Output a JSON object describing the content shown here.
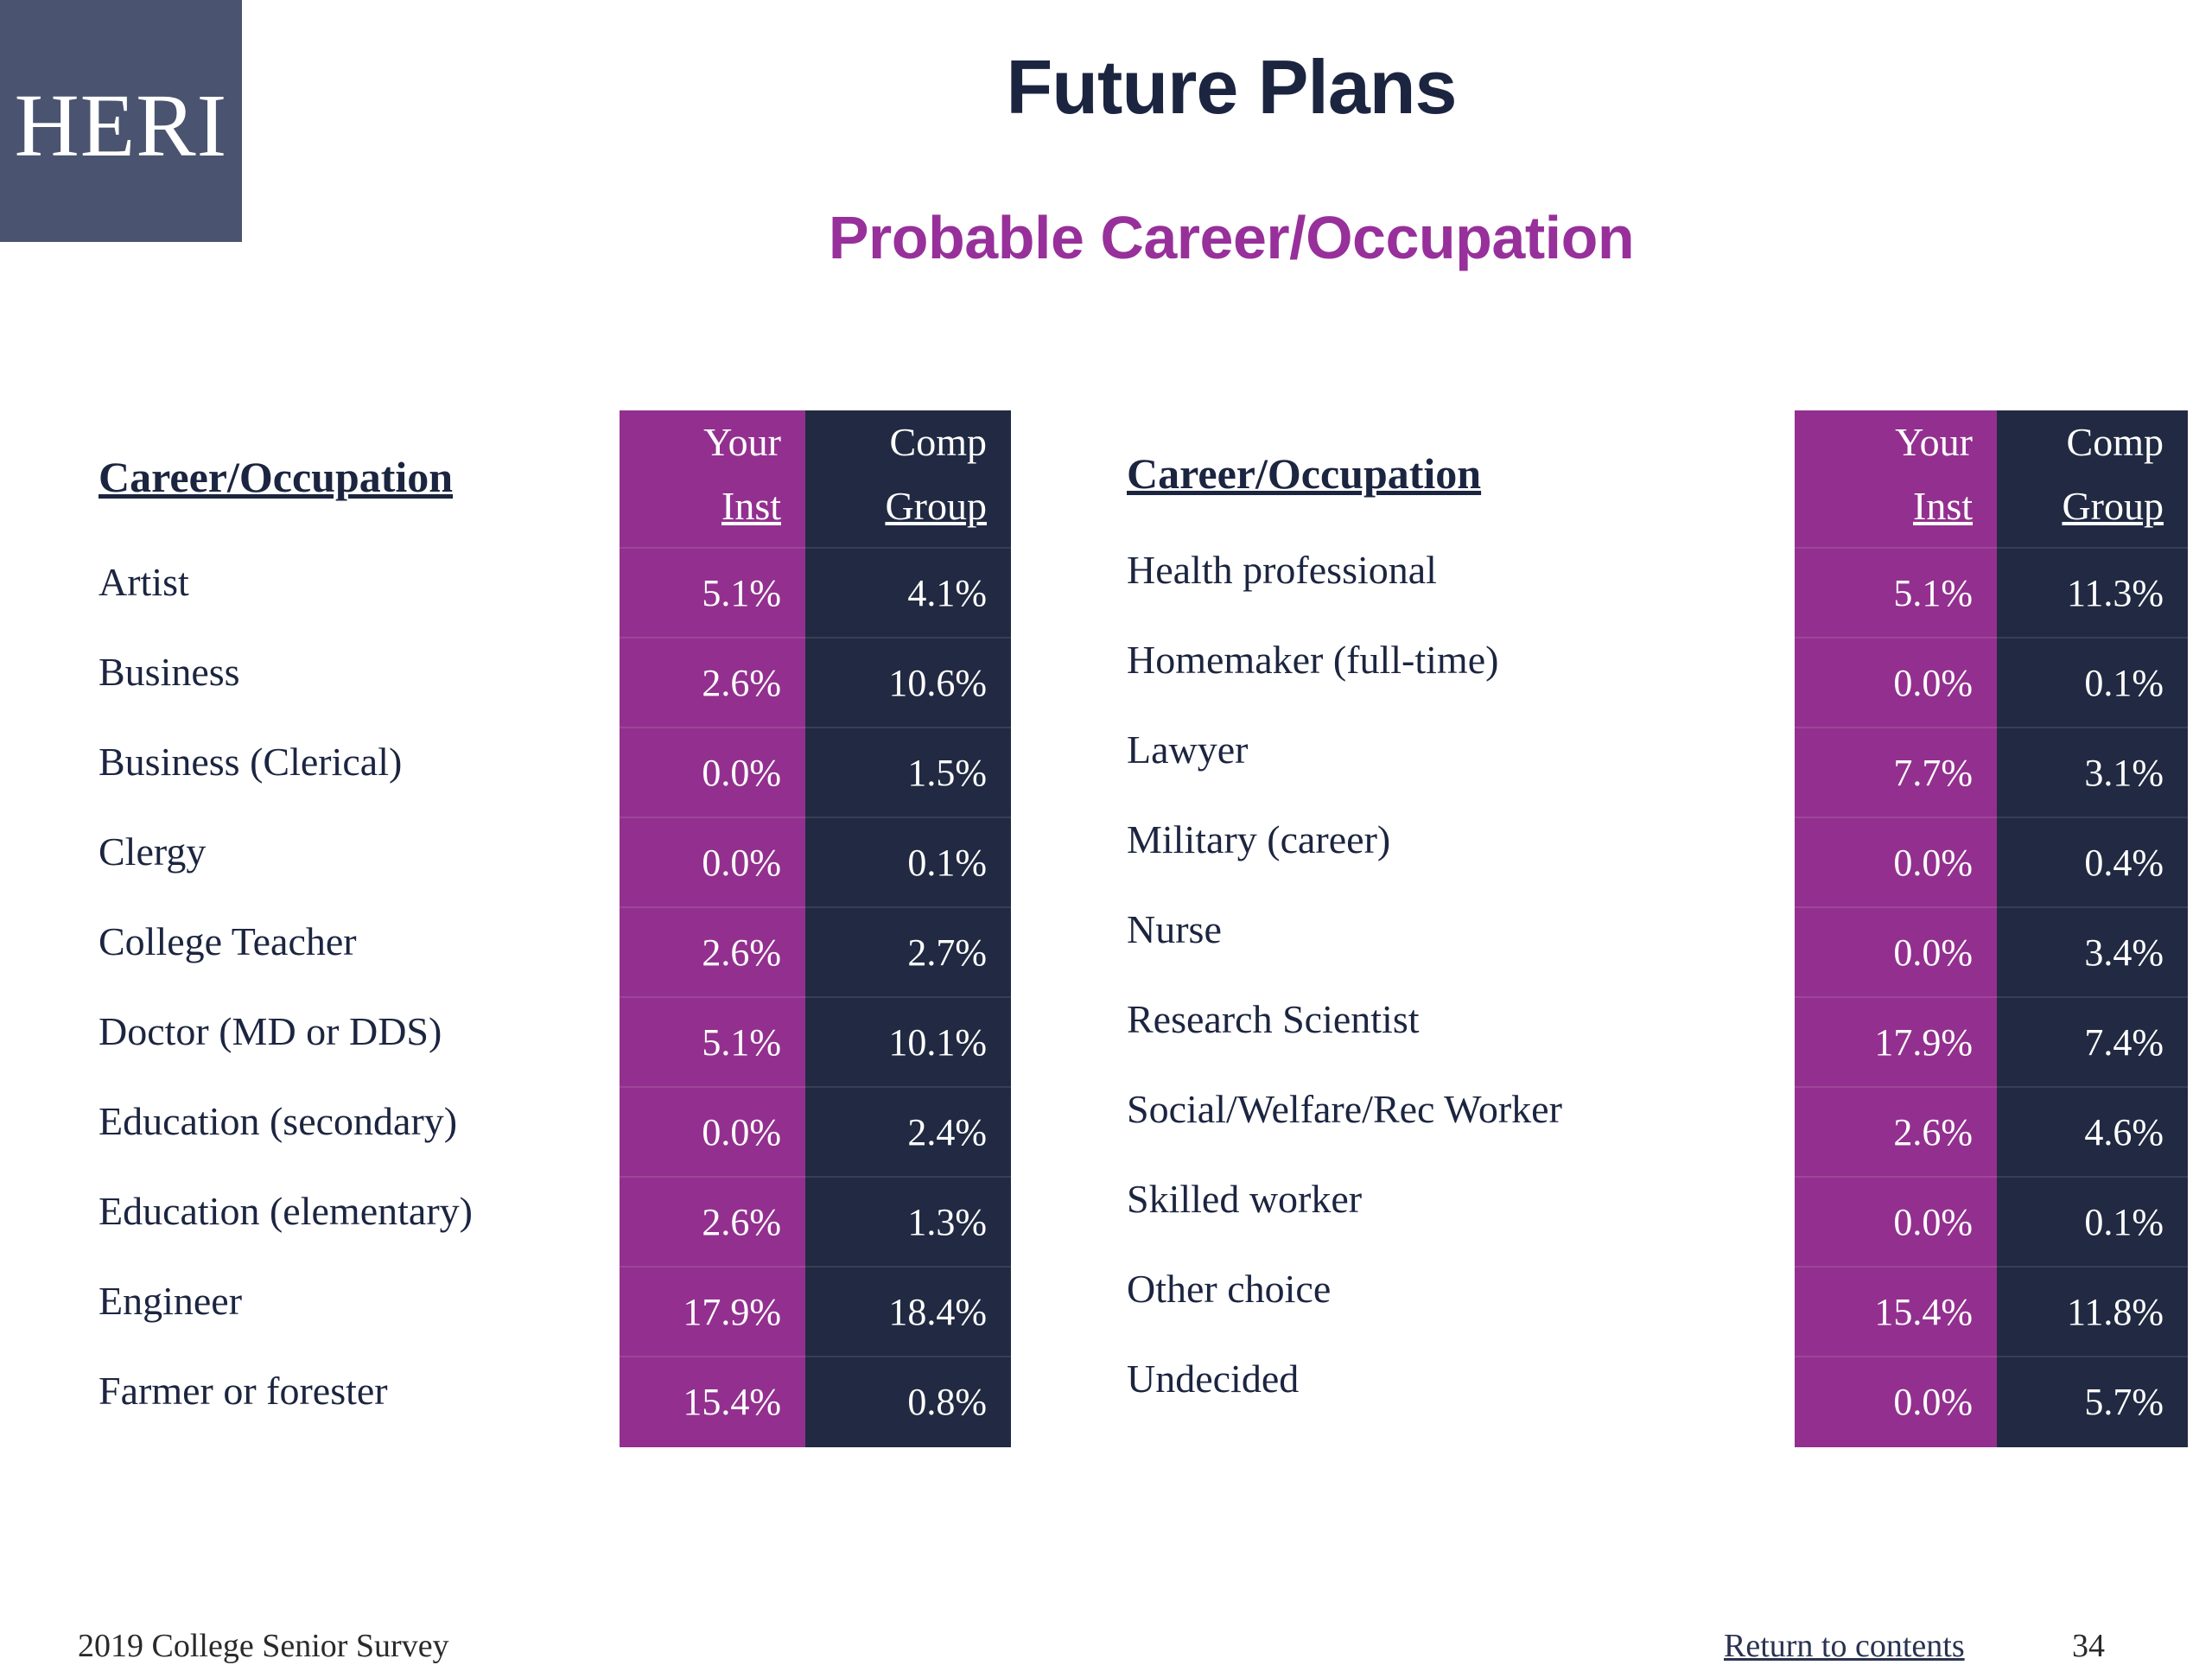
{
  "logo": {
    "text": "HERI"
  },
  "title": "Future Plans",
  "subtitle": "Probable Career/Occupation",
  "table_headers": {
    "label": "Career/Occupation",
    "inst_line1": "Your",
    "inst_line2": "Inst",
    "comp_line1": "Comp",
    "comp_line2": "Group"
  },
  "left_table": [
    {
      "label": "Artist",
      "inst": "5.1%",
      "comp": "4.1%"
    },
    {
      "label": "Business",
      "inst": "2.6%",
      "comp": "10.6%"
    },
    {
      "label": "Business (Clerical)",
      "inst": "0.0%",
      "comp": "1.5%"
    },
    {
      "label": "Clergy",
      "inst": "0.0%",
      "comp": "0.1%"
    },
    {
      "label": "College Teacher",
      "inst": "2.6%",
      "comp": "2.7%"
    },
    {
      "label": "Doctor (MD or DDS)",
      "inst": "5.1%",
      "comp": "10.1%"
    },
    {
      "label": "Education (secondary)",
      "inst": "0.0%",
      "comp": "2.4%"
    },
    {
      "label": "Education (elementary)",
      "inst": "2.6%",
      "comp": "1.3%"
    },
    {
      "label": "Engineer",
      "inst": "17.9%",
      "comp": "18.4%"
    },
    {
      "label": "Farmer or forester",
      "inst": "15.4%",
      "comp": "0.8%"
    }
  ],
  "right_table": [
    {
      "label": "Health professional",
      "inst": "5.1%",
      "comp": "11.3%"
    },
    {
      "label": "Homemaker (full-time)",
      "inst": "0.0%",
      "comp": "0.1%"
    },
    {
      "label": "Lawyer",
      "inst": "7.7%",
      "comp": "3.1%"
    },
    {
      "label": "Military (career)",
      "inst": "0.0%",
      "comp": "0.4%"
    },
    {
      "label": "Nurse",
      "inst": "0.0%",
      "comp": "3.4%"
    },
    {
      "label": "Research Scientist",
      "inst": "17.9%",
      "comp": "7.4%"
    },
    {
      "label": "Social/Welfare/Rec Worker",
      "inst": "2.6%",
      "comp": "4.6%"
    },
    {
      "label": "Skilled worker",
      "inst": "0.0%",
      "comp": "0.1%"
    },
    {
      "label": "Other choice",
      "inst": "15.4%",
      "comp": "11.8%"
    },
    {
      "label": "Undecided",
      "inst": "0.0%",
      "comp": "5.7%"
    }
  ],
  "footer": {
    "survey": "2019 College Senior Survey",
    "link": "Return to contents",
    "page": "34"
  },
  "colors": {
    "inst_column": "#93308f",
    "comp_column": "#212a42",
    "subtitle": "#97309a",
    "logo_bg": "#4a5470"
  }
}
